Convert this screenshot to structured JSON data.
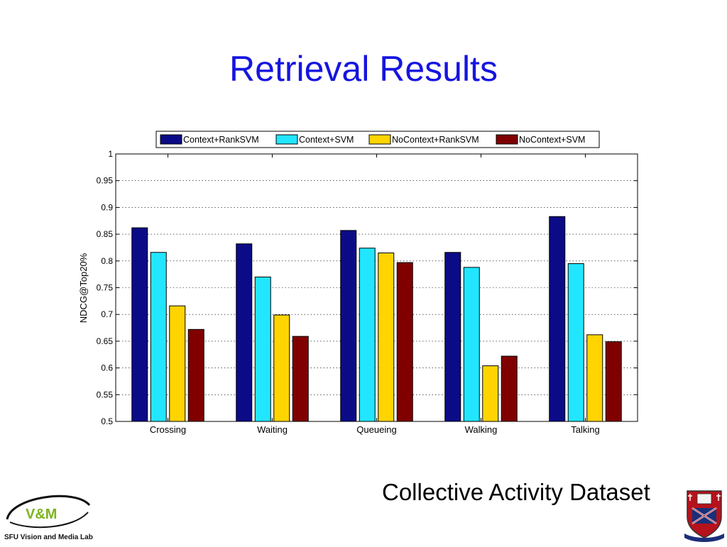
{
  "slide": {
    "title": "Retrieval Results",
    "caption": "Collective Activity Dataset"
  },
  "logos": {
    "lab_mark": "V&M",
    "lab_name": "SFU Vision and Media Lab"
  },
  "colors": {
    "title": "#1515e0",
    "series": [
      "#0b0b87",
      "#22e6ff",
      "#ffd400",
      "#800000"
    ]
  },
  "chart_data": {
    "type": "bar",
    "title": "",
    "xlabel": "",
    "ylabel": "NDCG@Top20%",
    "ylim": [
      0.5,
      1
    ],
    "yticks": [
      "0.5",
      "0.55",
      "0.6",
      "0.65",
      "0.7",
      "0.75",
      "0.8",
      "0.85",
      "0.9",
      "0.95",
      "1"
    ],
    "grid": true,
    "legend_position": "top",
    "categories": [
      "Crossing",
      "Waiting",
      "Queueing",
      "Walking",
      "Talking"
    ],
    "series": [
      {
        "name": "Context+RankSVM",
        "values": [
          0.862,
          0.832,
          0.857,
          0.816,
          0.883
        ]
      },
      {
        "name": "Context+SVM",
        "values": [
          0.816,
          0.77,
          0.824,
          0.788,
          0.795
        ]
      },
      {
        "name": "NoContext+RankSVM",
        "values": [
          0.716,
          0.699,
          0.815,
          0.604,
          0.662
        ]
      },
      {
        "name": "NoContext+SVM",
        "values": [
          0.672,
          0.659,
          0.797,
          0.622,
          0.649
        ]
      }
    ]
  }
}
